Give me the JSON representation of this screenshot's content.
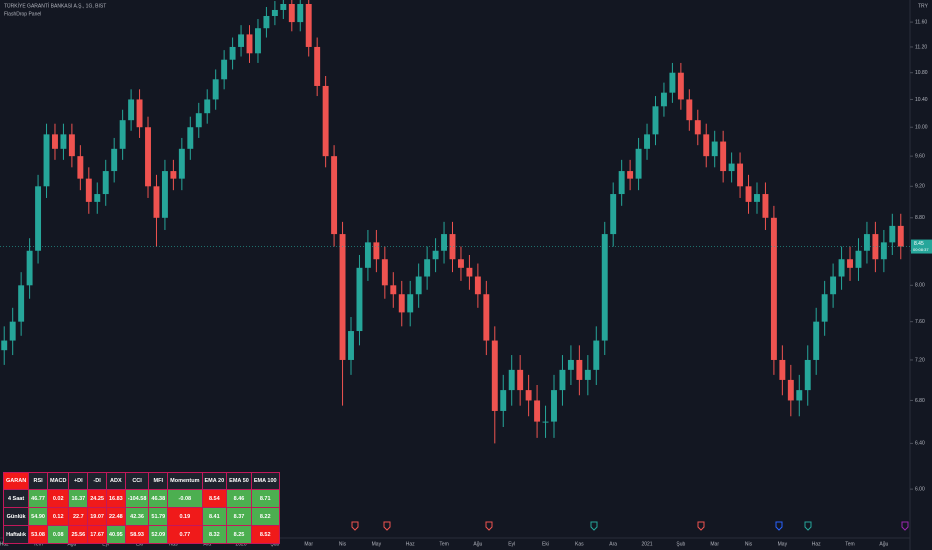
{
  "chart_data": {
    "type": "candlestick",
    "title": "TÜRKİYE GARANTİ BANKASI A.Ş., 1G, BIST",
    "subtitle": "FlashDrop Panel",
    "currency": "TRY",
    "price_label": "8.45",
    "countdown": "00:08:37",
    "up_color": "#26a69a",
    "down_color": "#ef5350",
    "log_scale": true,
    "ylim": [
      5.6,
      11.9
    ],
    "yticks": [
      {
        "value": 6.0,
        "label": "6.00"
      },
      {
        "value": 6.4,
        "label": "6.40"
      },
      {
        "value": 6.8,
        "label": "6.80"
      },
      {
        "value": 7.2,
        "label": "7.20"
      },
      {
        "value": 7.6,
        "label": "7.60"
      },
      {
        "value": 8.0,
        "label": "8.00"
      },
      {
        "value": 8.4,
        "label": "8.40"
      },
      {
        "value": 8.8,
        "label": "8.80"
      },
      {
        "value": 9.2,
        "label": "9.20"
      },
      {
        "value": 9.6,
        "label": "9.60"
      },
      {
        "value": 10.0,
        "label": "10.00"
      },
      {
        "value": 10.4,
        "label": "10.40"
      },
      {
        "value": 10.8,
        "label": "10.80"
      },
      {
        "value": 11.2,
        "label": "11.20"
      },
      {
        "value": 11.6,
        "label": "11.60"
      }
    ],
    "categories": [
      "Haz",
      null,
      null,
      null,
      "Tem",
      null,
      null,
      null,
      "Ağu",
      null,
      null,
      null,
      "Eyl",
      null,
      null,
      null,
      "Eki",
      null,
      null,
      null,
      "Kas",
      null,
      null,
      null,
      "Ara",
      null,
      null,
      null,
      "2020",
      null,
      null,
      null,
      "Şub",
      null,
      null,
      null,
      "Mar",
      null,
      null,
      null,
      "Nis",
      null,
      null,
      null,
      "May",
      null,
      null,
      null,
      "Haz",
      null,
      null,
      null,
      "Tem",
      null,
      null,
      null,
      "Ağu",
      null,
      null,
      null,
      "Eyl",
      null,
      null,
      null,
      "Eki",
      null,
      null,
      null,
      "Kas",
      null,
      null,
      null,
      "Ara",
      null,
      null,
      null,
      "2021",
      null,
      null,
      null,
      "Şub",
      null,
      null,
      null,
      "Mar",
      null,
      null,
      null,
      "Nis",
      null,
      null,
      null,
      "May",
      null,
      null,
      null,
      "Haz",
      null,
      null,
      null,
      "Tem",
      null,
      null,
      null,
      "Ağu"
    ],
    "ohlc": [
      [
        7.3,
        7.55,
        7.15,
        7.4
      ],
      [
        7.4,
        7.75,
        7.25,
        7.6
      ],
      [
        7.6,
        8.15,
        7.45,
        8.0
      ],
      [
        8.0,
        8.55,
        7.85,
        8.4
      ],
      [
        8.4,
        9.35,
        8.25,
        9.2
      ],
      [
        9.2,
        10.05,
        9.05,
        9.9
      ],
      [
        9.9,
        10.05,
        9.55,
        9.7
      ],
      [
        9.7,
        10.05,
        9.55,
        9.9
      ],
      [
        9.9,
        10.05,
        9.45,
        9.6
      ],
      [
        9.6,
        9.75,
        9.15,
        9.3
      ],
      [
        9.3,
        9.45,
        8.85,
        9.0
      ],
      [
        9.0,
        9.25,
        8.85,
        9.1
      ],
      [
        9.1,
        9.55,
        8.95,
        9.4
      ],
      [
        9.4,
        9.85,
        9.25,
        9.7
      ],
      [
        9.7,
        10.25,
        9.55,
        10.1
      ],
      [
        10.1,
        10.55,
        9.95,
        10.4
      ],
      [
        10.4,
        10.55,
        9.85,
        10.0
      ],
      [
        10.0,
        10.15,
        9.05,
        9.2
      ],
      [
        9.2,
        9.35,
        8.45,
        8.8
      ],
      [
        8.8,
        9.55,
        8.65,
        9.4
      ],
      [
        9.4,
        9.55,
        9.15,
        9.3
      ],
      [
        9.3,
        9.85,
        9.15,
        9.7
      ],
      [
        9.7,
        10.15,
        9.55,
        10.0
      ],
      [
        10.0,
        10.35,
        9.85,
        10.2
      ],
      [
        10.2,
        10.55,
        10.05,
        10.4
      ],
      [
        10.4,
        10.85,
        10.25,
        10.7
      ],
      [
        10.7,
        11.15,
        10.55,
        11.0
      ],
      [
        11.0,
        11.35,
        10.85,
        11.2
      ],
      [
        11.2,
        11.55,
        11.05,
        11.4
      ],
      [
        11.4,
        11.55,
        10.95,
        11.1
      ],
      [
        11.1,
        11.65,
        10.95,
        11.5
      ],
      [
        11.5,
        11.85,
        11.35,
        11.7
      ],
      [
        11.7,
        11.95,
        11.55,
        11.8
      ],
      [
        11.8,
        12.05,
        11.65,
        11.9
      ],
      [
        11.9,
        12.05,
        11.45,
        11.6
      ],
      [
        11.6,
        12.05,
        11.45,
        11.9
      ],
      [
        11.9,
        12.05,
        11.05,
        11.2
      ],
      [
        11.2,
        11.35,
        10.45,
        10.6
      ],
      [
        10.6,
        10.75,
        9.45,
        9.6
      ],
      [
        9.6,
        9.75,
        8.45,
        8.6
      ],
      [
        8.6,
        8.75,
        6.75,
        7.2
      ],
      [
        7.2,
        7.65,
        7.05,
        7.5
      ],
      [
        7.5,
        8.35,
        7.35,
        8.2
      ],
      [
        8.2,
        8.65,
        8.05,
        8.5
      ],
      [
        8.5,
        8.65,
        8.15,
        8.3
      ],
      [
        8.3,
        8.45,
        7.85,
        8.0
      ],
      [
        8.0,
        8.15,
        7.75,
        7.9
      ],
      [
        7.9,
        8.05,
        7.55,
        7.7
      ],
      [
        7.7,
        8.05,
        7.55,
        7.9
      ],
      [
        7.9,
        8.25,
        7.75,
        8.1
      ],
      [
        8.1,
        8.45,
        7.95,
        8.3
      ],
      [
        8.3,
        8.55,
        8.15,
        8.4
      ],
      [
        8.4,
        8.75,
        8.25,
        8.6
      ],
      [
        8.6,
        8.75,
        8.15,
        8.3
      ],
      [
        8.3,
        8.45,
        8.05,
        8.2
      ],
      [
        8.2,
        8.35,
        7.95,
        8.1
      ],
      [
        8.1,
        8.25,
        7.75,
        7.9
      ],
      [
        7.9,
        8.05,
        7.25,
        7.4
      ],
      [
        7.4,
        7.55,
        6.4,
        6.7
      ],
      [
        6.7,
        7.05,
        6.55,
        6.9
      ],
      [
        6.9,
        7.25,
        6.75,
        7.1
      ],
      [
        7.1,
        7.25,
        6.75,
        6.9
      ],
      [
        6.9,
        7.05,
        6.65,
        6.8
      ],
      [
        6.8,
        6.95,
        6.45,
        6.6
      ],
      [
        6.6,
        6.75,
        6.45,
        6.6
      ],
      [
        6.6,
        7.05,
        6.45,
        6.9
      ],
      [
        6.9,
        7.25,
        6.75,
        7.1
      ],
      [
        7.1,
        7.35,
        6.95,
        7.2
      ],
      [
        7.2,
        7.35,
        6.85,
        7.0
      ],
      [
        7.0,
        7.25,
        6.85,
        7.1
      ],
      [
        7.1,
        7.55,
        6.95,
        7.4
      ],
      [
        7.4,
        8.75,
        7.25,
        8.6
      ],
      [
        8.6,
        9.25,
        8.45,
        9.1
      ],
      [
        9.1,
        9.55,
        8.95,
        9.4
      ],
      [
        9.4,
        9.55,
        9.15,
        9.3
      ],
      [
        9.3,
        9.85,
        9.15,
        9.7
      ],
      [
        9.7,
        10.05,
        9.55,
        9.9
      ],
      [
        9.9,
        10.45,
        9.75,
        10.3
      ],
      [
        10.3,
        10.65,
        10.15,
        10.5
      ],
      [
        10.5,
        10.95,
        10.35,
        10.8
      ],
      [
        10.8,
        10.95,
        10.25,
        10.4
      ],
      [
        10.4,
        10.55,
        9.95,
        10.1
      ],
      [
        10.1,
        10.25,
        9.75,
        9.9
      ],
      [
        9.9,
        10.05,
        9.45,
        9.6
      ],
      [
        9.6,
        9.95,
        9.45,
        9.8
      ],
      [
        9.8,
        9.95,
        9.25,
        9.4
      ],
      [
        9.4,
        9.65,
        9.25,
        9.5
      ],
      [
        9.5,
        9.65,
        9.05,
        9.2
      ],
      [
        9.2,
        9.35,
        8.85,
        9.0
      ],
      [
        9.0,
        9.25,
        8.85,
        9.1
      ],
      [
        9.1,
        9.25,
        8.65,
        8.8
      ],
      [
        8.8,
        8.95,
        7.05,
        7.2
      ],
      [
        7.2,
        7.35,
        6.85,
        7.0
      ],
      [
        7.0,
        7.15,
        6.65,
        6.8
      ],
      [
        6.8,
        7.05,
        6.65,
        6.9
      ],
      [
        6.9,
        7.35,
        6.75,
        7.2
      ],
      [
        7.2,
        7.75,
        7.05,
        7.6
      ],
      [
        7.6,
        8.05,
        7.45,
        7.9
      ],
      [
        7.9,
        8.25,
        7.75,
        8.1
      ],
      [
        8.1,
        8.45,
        7.95,
        8.3
      ],
      [
        8.3,
        8.45,
        8.05,
        8.2
      ],
      [
        8.2,
        8.55,
        8.05,
        8.4
      ],
      [
        8.4,
        8.75,
        8.25,
        8.6
      ],
      [
        8.6,
        8.75,
        8.15,
        8.3
      ],
      [
        8.3,
        8.65,
        8.15,
        8.5
      ],
      [
        8.5,
        8.85,
        8.35,
        8.7
      ],
      [
        8.7,
        8.85,
        8.3,
        8.45
      ]
    ]
  },
  "indicator_table": {
    "header": [
      "GARAN",
      "RSI",
      "MACD",
      "+DI",
      "-DI",
      "ADX",
      "CCI",
      "MFI",
      "Momentum",
      "EMA 20",
      "EMA 50",
      "EMA 100"
    ],
    "rows": [
      {
        "label": "4 Saat",
        "cells": [
          "46.77",
          "0.02",
          "16.37",
          "24.25",
          "16.83",
          "-104.58",
          "46.38",
          "-0.08",
          "8.54",
          "8.46",
          "8.71"
        ],
        "colors": [
          "#4caf50",
          "#f01a1a",
          "#4caf50",
          "#f01a1a",
          "#f01a1a",
          "#4caf50",
          "#4caf50",
          "#4caf50",
          "#f01a1a",
          "#4caf50",
          "#4caf50"
        ]
      },
      {
        "label": "Günlük",
        "cells": [
          "54.90",
          "0.12",
          "22.7",
          "19.07",
          "22.48",
          "42.36",
          "51.79",
          "0.19",
          "8.41",
          "8.37",
          "8.22"
        ],
        "colors": [
          "#4caf50",
          "#f01a1a",
          "#f01a1a",
          "#f01a1a",
          "#f01a1a",
          "#4caf50",
          "#4caf50",
          "#f01a1a",
          "#4caf50",
          "#4caf50",
          "#4caf50"
        ]
      },
      {
        "label": "Haftalık",
        "cells": [
          "53.08",
          "0.08",
          "25.56",
          "17.67",
          "40.95",
          "58.93",
          "52.09",
          "0.77",
          "8.32",
          "8.25",
          "8.52"
        ],
        "colors": [
          "#f01a1a",
          "#4caf50",
          "#f01a1a",
          "#f01a1a",
          "#4caf50",
          "#f01a1a",
          "#4caf50",
          "#f01a1a",
          "#4caf50",
          "#4caf50",
          "#f01a1a"
        ]
      }
    ]
  }
}
